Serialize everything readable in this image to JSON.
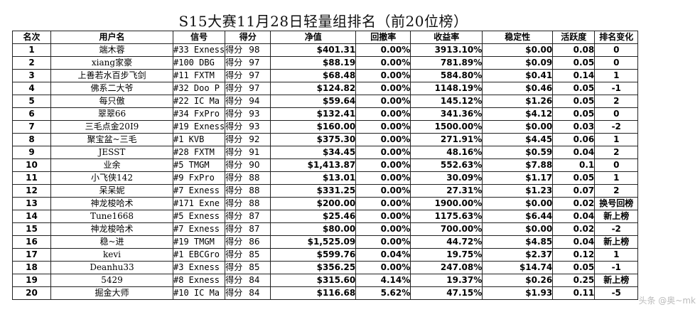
{
  "title": "S15大赛11月28日轻量组排名（前20位榜）",
  "headers": [
    "名次",
    "用户名",
    "信号",
    "得分",
    "净值",
    "回撤率",
    "收益率",
    "稳定性",
    "活跃度",
    "排名变化"
  ],
  "score_label": "得分",
  "watermark": "头条 @奥~mk",
  "rows": [
    {
      "rank": "1",
      "user": "端木蓉",
      "signal": "#33 Exness",
      "score": "98",
      "equity": "$401.31",
      "drawdown": "0.00%",
      "return": "3913.10%",
      "stability": "$0.00",
      "activity": "0.08",
      "change": "0"
    },
    {
      "rank": "2",
      "user": "xiang家豪",
      "signal": "#100 DBG",
      "score": "97",
      "equity": "$88.19",
      "drawdown": "0.00%",
      "return": "781.89%",
      "stability": "$0.09",
      "activity": "0.05",
      "change": "0"
    },
    {
      "rank": "3",
      "user": "上善若水百步飞剑",
      "signal": "#11 FXTM",
      "score": "97",
      "equity": "$68.48",
      "drawdown": "0.00%",
      "return": "584.80%",
      "stability": "$0.41",
      "activity": "0.14",
      "change": "1"
    },
    {
      "rank": "4",
      "user": "佛系二大爷",
      "signal": "#32 Doo P",
      "score": "97",
      "equity": "$124.82",
      "drawdown": "0.00%",
      "return": "1148.19%",
      "stability": "$0.46",
      "activity": "0.05",
      "change": "-1"
    },
    {
      "rank": "5",
      "user": "每只傲",
      "signal": "#22 IC Ma",
      "score": "94",
      "equity": "$59.64",
      "drawdown": "0.00%",
      "return": "145.12%",
      "stability": "$1.26",
      "activity": "0.05",
      "change": "2"
    },
    {
      "rank": "6",
      "user": "翠翠66",
      "signal": "#34 FxPro",
      "score": "93",
      "equity": "$132.41",
      "drawdown": "0.00%",
      "return": "341.36%",
      "stability": "$4.12",
      "activity": "0.05",
      "change": "0"
    },
    {
      "rank": "7",
      "user": "三毛点金20I9",
      "signal": "#19 Exness",
      "score": "93",
      "equity": "$160.00",
      "drawdown": "0.00%",
      "return": "1500.00%",
      "stability": "$0.00",
      "activity": "0.03",
      "change": "-2"
    },
    {
      "rank": "8",
      "user": "聚宝盆~三毛",
      "signal": "#1 KVB",
      "score": "92",
      "equity": "$375.30",
      "drawdown": "0.00%",
      "return": "271.91%",
      "stability": "$4.45",
      "activity": "0.06",
      "change": "1"
    },
    {
      "rank": "9",
      "user": "JESST",
      "signal": "#28 FXTM",
      "score": "91",
      "equity": "$34.45",
      "drawdown": "0.00%",
      "return": "48.16%",
      "stability": "$0.59",
      "activity": "0.04",
      "change": "2"
    },
    {
      "rank": "10",
      "user": "业余",
      "signal": "#5 TMGM",
      "score": "90",
      "equity": "$1,413.87",
      "drawdown": "0.00%",
      "return": "552.63%",
      "stability": "$7.88",
      "activity": "0.1",
      "change": "0"
    },
    {
      "rank": "11",
      "user": "小飞侠142",
      "signal": "#9 FxPro",
      "score": "88",
      "equity": "$13.01",
      "drawdown": "0.00%",
      "return": "30.09%",
      "stability": "$1.17",
      "activity": "0.05",
      "change": "1"
    },
    {
      "rank": "12",
      "user": "呆呆妮",
      "signal": "#7 Exness",
      "score": "88",
      "equity": "$331.25",
      "drawdown": "0.00%",
      "return": "27.31%",
      "stability": "$1.23",
      "activity": "0.07",
      "change": "2"
    },
    {
      "rank": "13",
      "user": "神龙梭哈术",
      "signal": "#171 Exne",
      "score": "88",
      "equity": "$200.00",
      "drawdown": "0.00%",
      "return": "1900.00%",
      "stability": "$0.00",
      "activity": "0.02",
      "change": "换号回榜"
    },
    {
      "rank": "14",
      "user": "Tune1668",
      "signal": "#5 Exness",
      "score": "87",
      "equity": "$25.46",
      "drawdown": "0.00%",
      "return": "1175.63%",
      "stability": "$6.44",
      "activity": "0.04",
      "change": "新上榜"
    },
    {
      "rank": "15",
      "user": "神龙梭哈术",
      "signal": "#7 Exness",
      "score": "87",
      "equity": "$80.00",
      "drawdown": "0.00%",
      "return": "700.00%",
      "stability": "$0.00",
      "activity": "0.02",
      "change": "-2"
    },
    {
      "rank": "16",
      "user": "稳~进",
      "signal": "#19 TMGM",
      "score": "86",
      "equity": "$1,525.09",
      "drawdown": "0.00%",
      "return": "44.72%",
      "stability": "$4.85",
      "activity": "0.04",
      "change": "新上榜"
    },
    {
      "rank": "17",
      "user": "kevi",
      "signal": "#1 EBCGro",
      "score": "85",
      "equity": "$599.76",
      "drawdown": "0.04%",
      "return": "19.75%",
      "stability": "$2.37",
      "activity": "0.12",
      "change": "1"
    },
    {
      "rank": "18",
      "user": "Deanhu33",
      "signal": "#3 Exness",
      "score": "85",
      "equity": "$356.25",
      "drawdown": "0.00%",
      "return": "247.08%",
      "stability": "$14.74",
      "activity": "0.05",
      "change": "-1"
    },
    {
      "rank": "19",
      "user": "5429",
      "signal": "#8 Exness",
      "score": "84",
      "equity": "$315.60",
      "drawdown": "4.14%",
      "return": "19.37%",
      "stability": "$0.26",
      "activity": "0.25",
      "change": "新上榜"
    },
    {
      "rank": "20",
      "user": "掘金大师",
      "signal": "#10 IC Ma",
      "score": "84",
      "equity": "$116.68",
      "drawdown": "5.62%",
      "return": "47.15%",
      "stability": "$1.93",
      "activity": "0.11",
      "change": "-5"
    }
  ]
}
